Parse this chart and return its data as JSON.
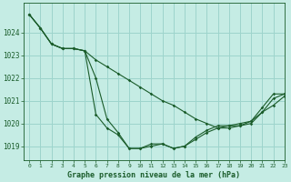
{
  "title": "Graphe pression niveau de la mer (hPa)",
  "background_color": "#c5ece4",
  "grid_color": "#9dd4cc",
  "line_color": "#1a5c2a",
  "xlim": [
    -0.5,
    23
  ],
  "ylim": [
    1018.4,
    1025.3
  ],
  "yticks": [
    1019,
    1020,
    1021,
    1022,
    1023,
    1024
  ],
  "xticks": [
    0,
    1,
    2,
    3,
    4,
    5,
    6,
    7,
    8,
    9,
    10,
    11,
    12,
    13,
    14,
    15,
    16,
    17,
    18,
    19,
    20,
    21,
    22,
    23
  ],
  "series": [
    [
      1024.8,
      1024.2,
      1023.5,
      1023.3,
      1023.3,
      1023.2,
      1022.8,
      1022.5,
      1022.2,
      1021.9,
      1021.6,
      1021.3,
      1021.0,
      1020.8,
      1020.5,
      1020.2,
      1020.0,
      1019.8,
      1019.8,
      1019.9,
      1020.0,
      1020.5,
      1021.1,
      1021.3
    ],
    [
      1024.8,
      1024.2,
      1023.5,
      1023.3,
      1023.3,
      1023.2,
      1020.4,
      1019.8,
      1019.5,
      1018.9,
      1018.9,
      1019.0,
      1019.1,
      1018.9,
      1019.0,
      1019.3,
      1019.6,
      1019.8,
      1019.9,
      1019.9,
      1020.1,
      1020.7,
      1021.3,
      1021.3
    ],
    [
      1024.8,
      1024.2,
      1023.5,
      1023.3,
      1023.3,
      1023.2,
      1022.0,
      1020.2,
      1019.6,
      1018.9,
      1018.9,
      1019.1,
      1019.1,
      1018.9,
      1019.0,
      1019.4,
      1019.7,
      1019.9,
      1019.9,
      1020.0,
      1020.1,
      1020.5,
      1020.8,
      1021.2
    ]
  ],
  "figsize": [
    3.2,
    2.0
  ],
  "dpi": 100
}
